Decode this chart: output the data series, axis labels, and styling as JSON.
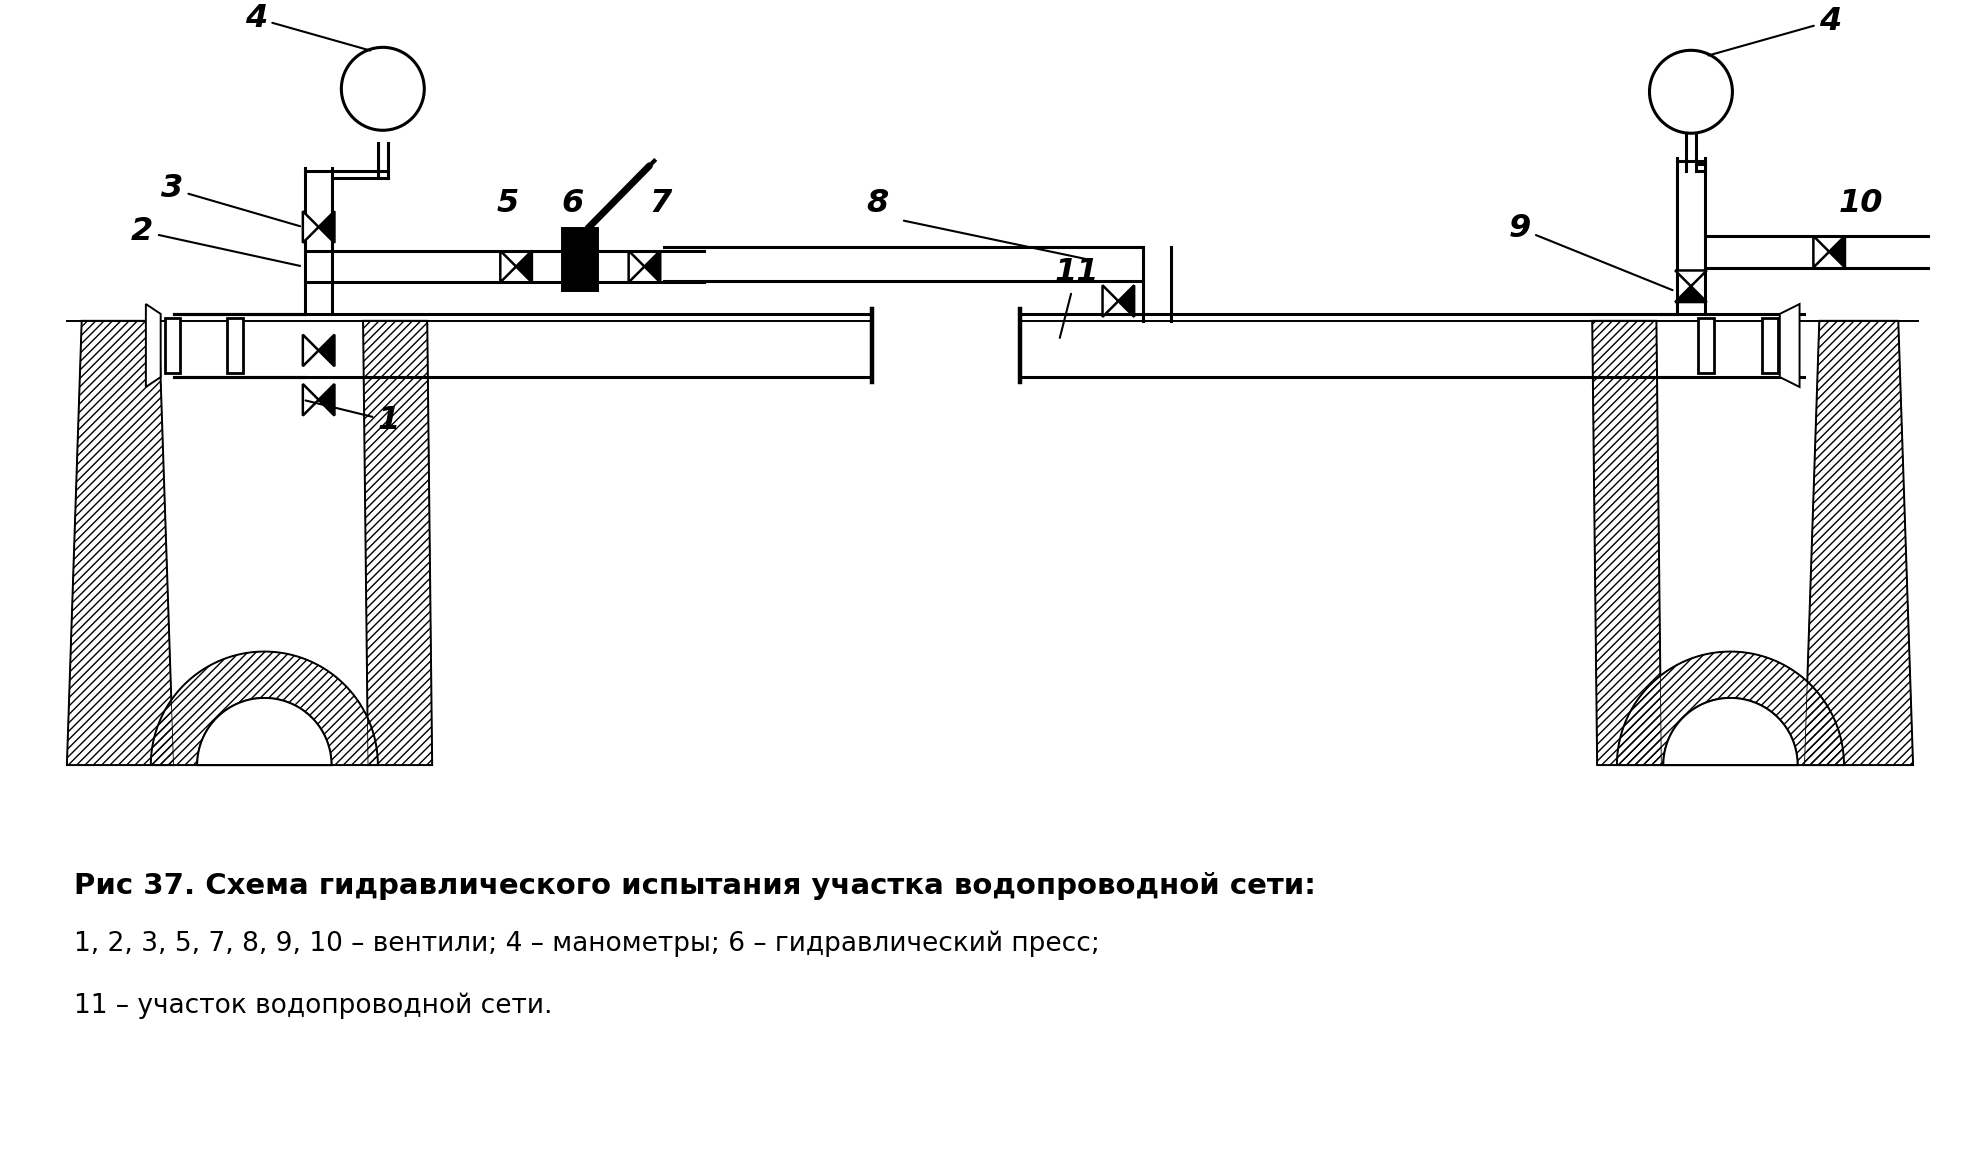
{
  "title": "Рис 37. Схема гидравлического испытания участка водопроводной сети:",
  "caption_line2": "1, 2, 3, 5, 7, 8, 9, 10 – вентили; 4 – манометры; 6 – гидравлический пресс;",
  "caption_line3": "11 – участок водопроводной сети.",
  "bg_color": "#ffffff",
  "line_color": "#000000",
  "title_fontsize": 21,
  "caption_fontsize": 19,
  "fig_width": 19.78,
  "fig_height": 11.6,
  "dpi": 100
}
